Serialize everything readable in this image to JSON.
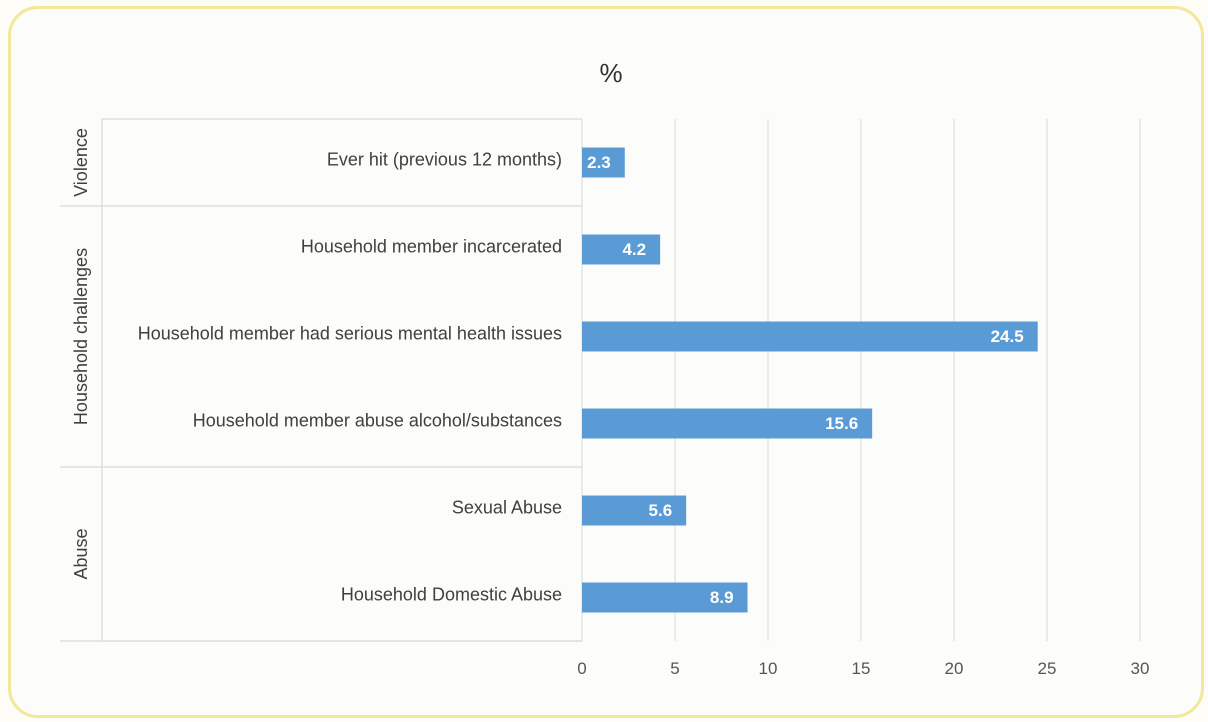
{
  "chart_data": {
    "type": "bar",
    "orientation": "horizontal",
    "title": "%",
    "xlim": [
      0,
      30
    ],
    "x_ticks": [
      "0",
      "5",
      "10",
      "15",
      "20",
      "25",
      "30"
    ],
    "grid": true,
    "bar_color": "#5b9bd5",
    "groups": [
      {
        "name": "Violence",
        "categories": [
          "Ever hit (previous 12 months)"
        ]
      },
      {
        "name": "Household challenges",
        "categories": [
          "Household member incarcerated",
          "Household member had serious mental health issues",
          "Household member abuse alcohol/substances"
        ]
      },
      {
        "name": "Abuse",
        "categories": [
          "Sexual Abuse",
          "Household Domestic Abuse"
        ]
      }
    ],
    "categories": [
      "Ever hit (previous 12 months)",
      "Household member incarcerated",
      "Household member had serious mental health issues",
      "Household member abuse alcohol/substances",
      "Sexual Abuse",
      "Household Domestic Abuse"
    ],
    "values": [
      2.3,
      4.2,
      24.5,
      15.6,
      5.6,
      8.9
    ],
    "data_labels": [
      "2.3",
      "4.2",
      "24.5",
      "15.6",
      "5.6",
      "8.9"
    ]
  },
  "colors": {
    "frame_border": "#f3e79a",
    "bar": "#5b9bd5"
  }
}
